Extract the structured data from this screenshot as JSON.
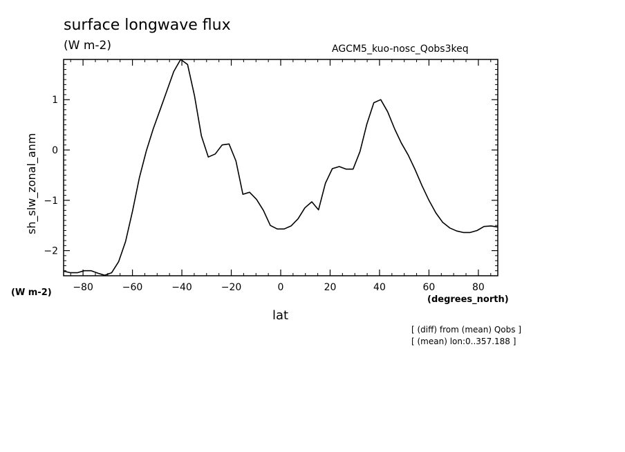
{
  "chart_data": {
    "type": "line",
    "title": "surface longwave flux",
    "units": "(W m-2)",
    "run_label": "AGCM5_kuo-nosc_Qobs3keq",
    "xlabel": "lat",
    "ylabel": "sh_slw_zonal_anm",
    "x_units": "(degrees_north)",
    "y_units": "(W m-2)",
    "notes": [
      "[ (diff) from (mean) Qobs ]",
      "[ (mean) lon:0..357.188 ]"
    ],
    "xlim": [
      -87.86,
      87.86
    ],
    "ylim": [
      -2.5,
      1.8
    ],
    "x_ticks": [
      -80,
      -60,
      -40,
      -20,
      0,
      20,
      40,
      60,
      80
    ],
    "x_tick_labels": [
      "−80",
      "−60",
      "−40",
      "−20",
      "0",
      "20",
      "40",
      "60",
      "80"
    ],
    "y_ticks": [
      -2,
      -1,
      0,
      1
    ],
    "y_tick_labels": [
      "−2",
      "−1",
      "0",
      "1"
    ],
    "grid": false,
    "series": [
      {
        "x": [
          -87.86,
          -85.1,
          -82.3,
          -79.5,
          -76.7,
          -73.9,
          -71.2,
          -68.4,
          -65.6,
          -62.8,
          -60.0,
          -57.2,
          -54.4,
          -51.6,
          -48.8,
          -46.1,
          -43.3,
          -40.5,
          -37.7,
          -34.9,
          -32.1,
          -29.3,
          -26.5,
          -23.7,
          -20.9,
          -18.1,
          -15.3,
          -12.6,
          -9.8,
          -7.0,
          -4.2,
          -1.4,
          1.4,
          4.2,
          7.0,
          9.8,
          12.6,
          15.3,
          18.1,
          20.9,
          23.7,
          26.5,
          29.3,
          32.1,
          34.9,
          37.7,
          40.5,
          43.3,
          46.1,
          48.8,
          51.6,
          54.4,
          57.2,
          60.0,
          62.8,
          65.6,
          68.4,
          71.2,
          73.9,
          76.7,
          79.5,
          82.3,
          85.1,
          87.86
        ],
        "y": [
          -2.41,
          -2.44,
          -2.44,
          -2.4,
          -2.4,
          -2.45,
          -2.49,
          -2.44,
          -2.22,
          -1.82,
          -1.22,
          -0.55,
          -0.02,
          0.42,
          0.8,
          1.17,
          1.56,
          1.8,
          1.7,
          1.08,
          0.28,
          -0.14,
          -0.08,
          0.1,
          0.12,
          -0.22,
          -0.88,
          -0.84,
          -0.98,
          -1.2,
          -1.5,
          -1.57,
          -1.57,
          -1.51,
          -1.37,
          -1.15,
          -1.03,
          -1.19,
          -0.66,
          -0.37,
          -0.33,
          -0.38,
          -0.38,
          -0.03,
          0.52,
          0.94,
          1.0,
          0.76,
          0.42,
          0.14,
          -0.1,
          -0.39,
          -0.71,
          -1.0,
          -1.25,
          -1.44,
          -1.55,
          -1.61,
          -1.64,
          -1.64,
          -1.6,
          -1.52,
          -1.51,
          -1.53
        ]
      }
    ]
  }
}
